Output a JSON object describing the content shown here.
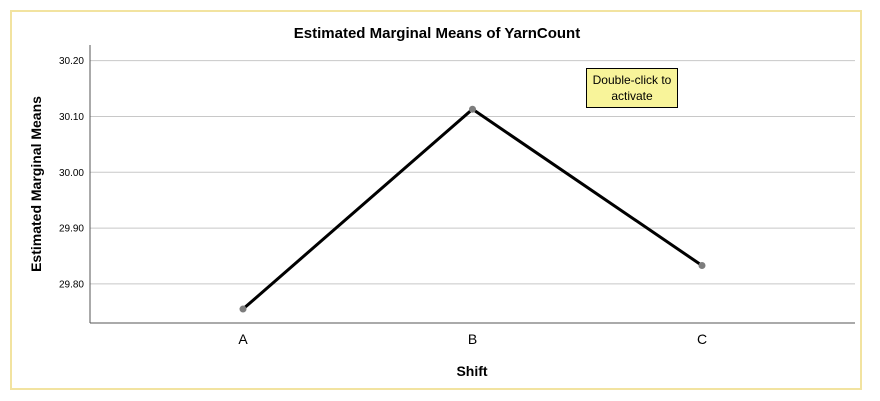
{
  "chart_data": {
    "type": "line",
    "title": "Estimated Marginal Means of YarnCount",
    "xlabel": "Shift",
    "ylabel": "Estimated Marginal Means",
    "categories": [
      "A",
      "B",
      "C"
    ],
    "series": [
      {
        "values": [
          29.755,
          30.113,
          29.833
        ]
      }
    ],
    "yticks": [
      "29.80",
      "29.90",
      "30.00",
      "30.10",
      "30.20"
    ],
    "ylim": [
      29.73,
      30.228
    ],
    "grid": true,
    "colors": {
      "line": "#000000",
      "marker": "#7d7d7d",
      "gridline": "#c8c8c8",
      "frame": "#f2e3a0"
    }
  },
  "tooltip": {
    "line1": "Double-click to",
    "line2": "activate",
    "color": "#f8f49a"
  }
}
